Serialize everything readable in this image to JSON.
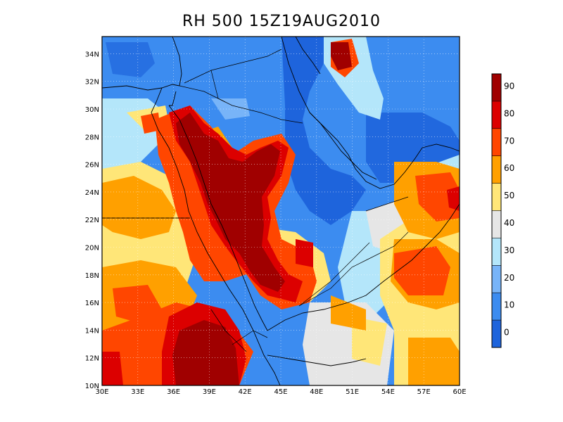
{
  "title": "RH 500 15Z19AUG2010",
  "lon_labels": [
    "30E",
    "33E",
    "36E",
    "39E",
    "42E",
    "45E",
    "48E",
    "51E",
    "54E",
    "57E",
    "60E"
  ],
  "lat_labels": [
    "10N",
    "12N",
    "14N",
    "16N",
    "18N",
    "20N",
    "22N",
    "24N",
    "26N",
    "28N",
    "30N",
    "32N",
    "34N"
  ],
  "colorbar": {
    "labels": [
      "0",
      "10",
      "20",
      "30",
      "40",
      "50",
      "60",
      "70",
      "80",
      "90"
    ],
    "colors": [
      "#1e64dc",
      "#3c8cf0",
      "#78b4f8",
      "#b4e6fa",
      "#e6e6e6",
      "#ffe678",
      "#ffa000",
      "#ff4600",
      "#dc0000",
      "#a00000"
    ]
  },
  "map_colors": {
    "blue_dark": "#1e64dc",
    "blue": "#3c8cf0",
    "blue_light": "#78b4f8",
    "cyan": "#b4e6fa",
    "grey": "#e6e6e6",
    "yellow": "#ffe678",
    "orange": "#ffa000",
    "red_orange": "#ff4600",
    "red": "#dc0000",
    "dark_red": "#a00000"
  }
}
